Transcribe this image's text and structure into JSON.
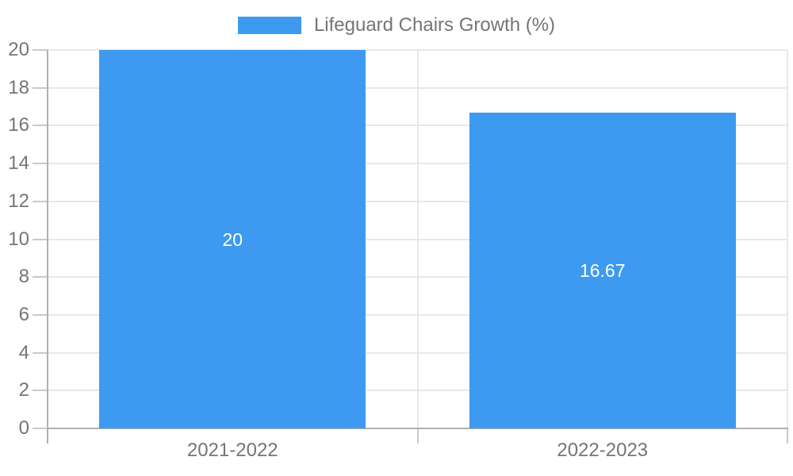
{
  "chart_data": {
    "type": "bar",
    "title": "",
    "legend_label": "Lifeguard Chairs Growth (%)",
    "legend_position": "top-center",
    "categories": [
      "2021-2022",
      "2022-2023"
    ],
    "values": [
      20,
      16.67
    ],
    "bar_value_labels": [
      "20",
      "16.67"
    ],
    "xlabel": "",
    "ylabel": "",
    "ylim": [
      0,
      20
    ],
    "ytick_step": 2,
    "ytick_labels": [
      "0",
      "2",
      "4",
      "6",
      "8",
      "10",
      "12",
      "14",
      "16",
      "18",
      "20"
    ],
    "grid": true,
    "colors": {
      "bar": "#3d9af0",
      "axis": "#b0b0b0",
      "grid": "#e8e8e8",
      "tick": "#c9c9c9",
      "text": "#757575",
      "bar_label": "#ffffff",
      "background": "#ffffff"
    }
  }
}
